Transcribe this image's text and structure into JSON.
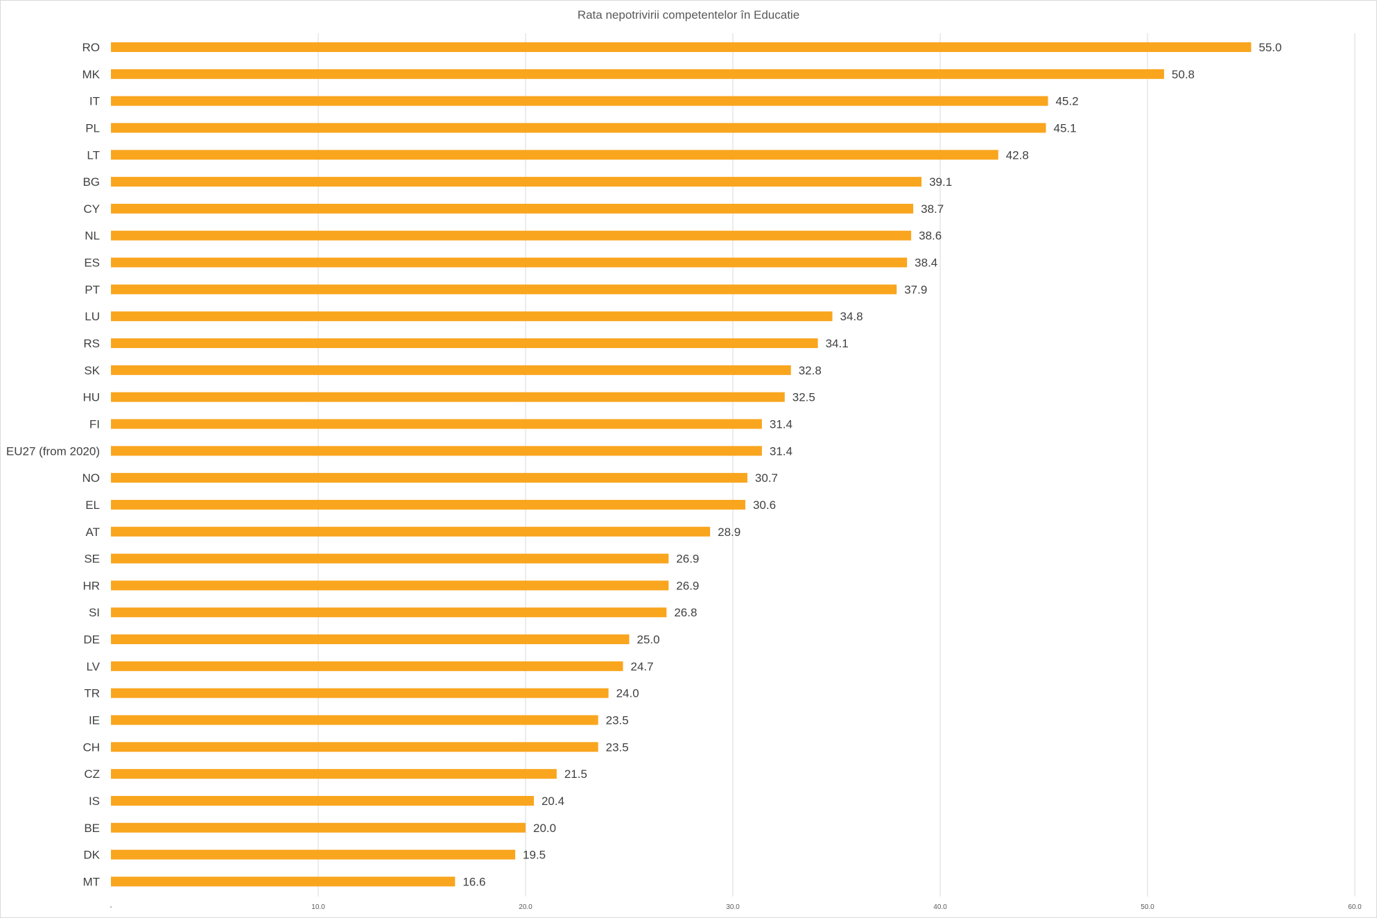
{
  "chart_data": {
    "type": "bar",
    "orientation": "horizontal",
    "title": "Rata nepotrivirii competentelor în Educatie",
    "xlabel": "",
    "ylabel": "",
    "xlim": [
      0,
      60
    ],
    "x_ticks": [
      "-",
      "10.0",
      "20.0",
      "30.0",
      "40.0",
      "50.0",
      "60.0"
    ],
    "x_tick_values": [
      0,
      10,
      20,
      30,
      40,
      50,
      60
    ],
    "grid": "vertical",
    "legend": "none",
    "bar_color": "#F9A51E",
    "categories": [
      "RO",
      "MK",
      "IT",
      "PL",
      "LT",
      "BG",
      "CY",
      "NL",
      "ES",
      "PT",
      "LU",
      "RS",
      "SK",
      "HU",
      "FI",
      "EU27 (from 2020)",
      "NO",
      "EL",
      "AT",
      "SE",
      "HR",
      "SI",
      "DE",
      "LV",
      "TR",
      "IE",
      "CH",
      "CZ",
      "IS",
      "BE",
      "DK",
      "MT"
    ],
    "values": [
      55.0,
      50.8,
      45.2,
      45.1,
      42.8,
      39.1,
      38.7,
      38.6,
      38.4,
      37.9,
      34.8,
      34.1,
      32.8,
      32.5,
      31.4,
      31.4,
      30.7,
      30.6,
      28.9,
      26.9,
      26.9,
      26.8,
      25.0,
      24.7,
      24.0,
      23.5,
      23.5,
      21.5,
      20.4,
      20.0,
      19.5,
      16.6
    ],
    "value_labels": [
      "55.0",
      "50.8",
      "45.2",
      "45.1",
      "42.8",
      "39.1",
      "38.7",
      "38.6",
      "38.4",
      "37.9",
      "34.8",
      "34.1",
      "32.8",
      "32.5",
      "31.4",
      "31.4",
      "30.7",
      "30.6",
      "28.9",
      "26.9",
      "26.9",
      "26.8",
      "25.0",
      "24.7",
      "24.0",
      "23.5",
      "23.5",
      "21.5",
      "20.4",
      "20.0",
      "19.5",
      "16.6"
    ]
  }
}
